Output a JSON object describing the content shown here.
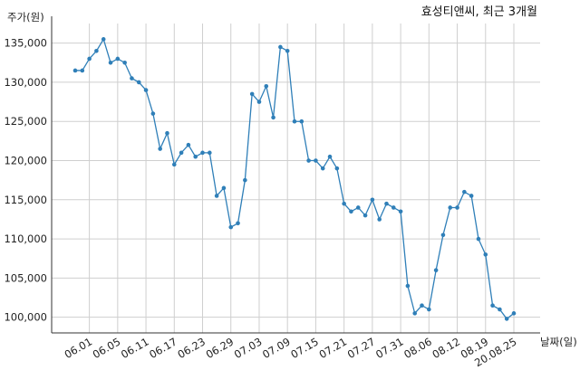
{
  "chart_data": {
    "type": "line",
    "title": "효성티앤씨, 최근 3개월",
    "ylabel": "주가(원)",
    "xlabel": "날짜(일)",
    "ylim": [
      98000,
      137500
    ],
    "yticks": [
      100000,
      105000,
      110000,
      115000,
      120000,
      125000,
      130000,
      135000
    ],
    "ytick_labels": [
      "100,000",
      "105,000",
      "110,000",
      "115,000",
      "120,000",
      "125,000",
      "130,000",
      "135,000"
    ],
    "xtick_labels": [
      "06.01",
      "06.05",
      "06.11",
      "06.17",
      "06.23",
      "06.29",
      "07.03",
      "07.09",
      "07.15",
      "07.21",
      "07.27",
      "07.31",
      "08.06",
      "08.12",
      "08.19",
      "20.08.25"
    ],
    "xtick_indices": [
      2,
      6,
      10,
      14,
      18,
      22,
      26,
      30,
      34,
      38,
      42,
      46,
      50,
      54,
      58,
      62
    ],
    "grid": true,
    "series": [
      {
        "color": "#2f7fb8",
        "values": [
          131500,
          131500,
          133000,
          134000,
          135500,
          132500,
          133000,
          132500,
          130500,
          130000,
          129000,
          126000,
          121500,
          123500,
          119500,
          121000,
          122000,
          120500,
          121000,
          121000,
          115500,
          116500,
          111500,
          112000,
          117500,
          128500,
          127500,
          129500,
          125500,
          134500,
          134000,
          125000,
          125000,
          120000,
          120000,
          119000,
          120500,
          119000,
          114500,
          113500,
          114000,
          113000,
          115000,
          112500,
          114500,
          114000,
          113500,
          104000,
          100500,
          101500,
          101000,
          106000,
          110500,
          114000,
          114000,
          116000,
          115500,
          110000,
          108000,
          101500,
          101000,
          99800,
          100500
        ]
      }
    ]
  }
}
